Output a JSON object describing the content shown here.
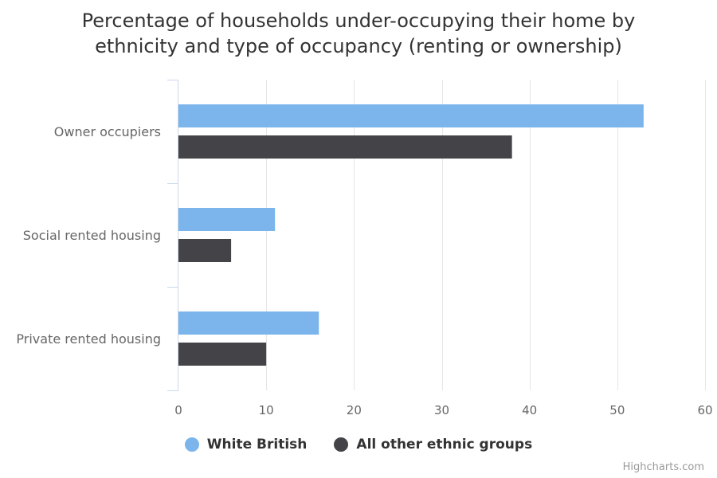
{
  "chart_data": {
    "type": "bar",
    "orientation": "horizontal",
    "title_lines": [
      "Percentage of households under-occupying their home by",
      "ethnicity and type of occupancy (renting or ownership)"
    ],
    "categories": [
      "Owner occupiers",
      "Social rented housing",
      "Private rented housing"
    ],
    "series": [
      {
        "name": "White British",
        "color": "#7cb5ec",
        "values": [
          53,
          11,
          16
        ]
      },
      {
        "name": "All other ethnic groups",
        "color": "#434348",
        "values": [
          38,
          6,
          10
        ]
      }
    ],
    "xlim": [
      0,
      60
    ],
    "ticks": [
      0,
      10,
      20,
      30,
      40,
      50,
      60
    ],
    "grid": true,
    "legend_position": "bottom"
  },
  "credits": "Highcharts.com"
}
